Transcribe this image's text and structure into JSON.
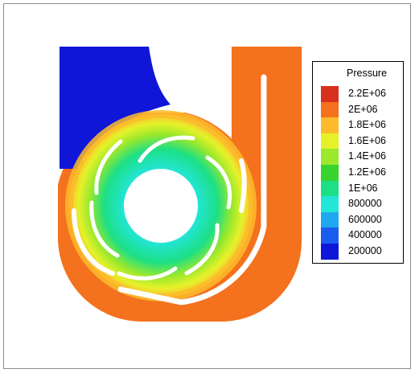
{
  "legend": {
    "title": "Pressure",
    "levels": [
      {
        "label": "2.2E+06",
        "color": "#d7301f"
      },
      {
        "label": "2E+06",
        "color": "#f4711d"
      },
      {
        "label": "1.8E+06",
        "color": "#fdbb2c"
      },
      {
        "label": "1.6E+06",
        "color": "#e5f22a"
      },
      {
        "label": "1.4E+06",
        "color": "#9be82c"
      },
      {
        "label": "1.2E+06",
        "color": "#37d42e"
      },
      {
        "label": "1E+06",
        "color": "#1ddf85"
      },
      {
        "label": "800000",
        "color": "#22e6d7"
      },
      {
        "label": "600000",
        "color": "#1ea8f0"
      },
      {
        "label": "400000",
        "color": "#1a5cf0"
      },
      {
        "label": "200000",
        "color": "#1016d8"
      }
    ]
  }
}
